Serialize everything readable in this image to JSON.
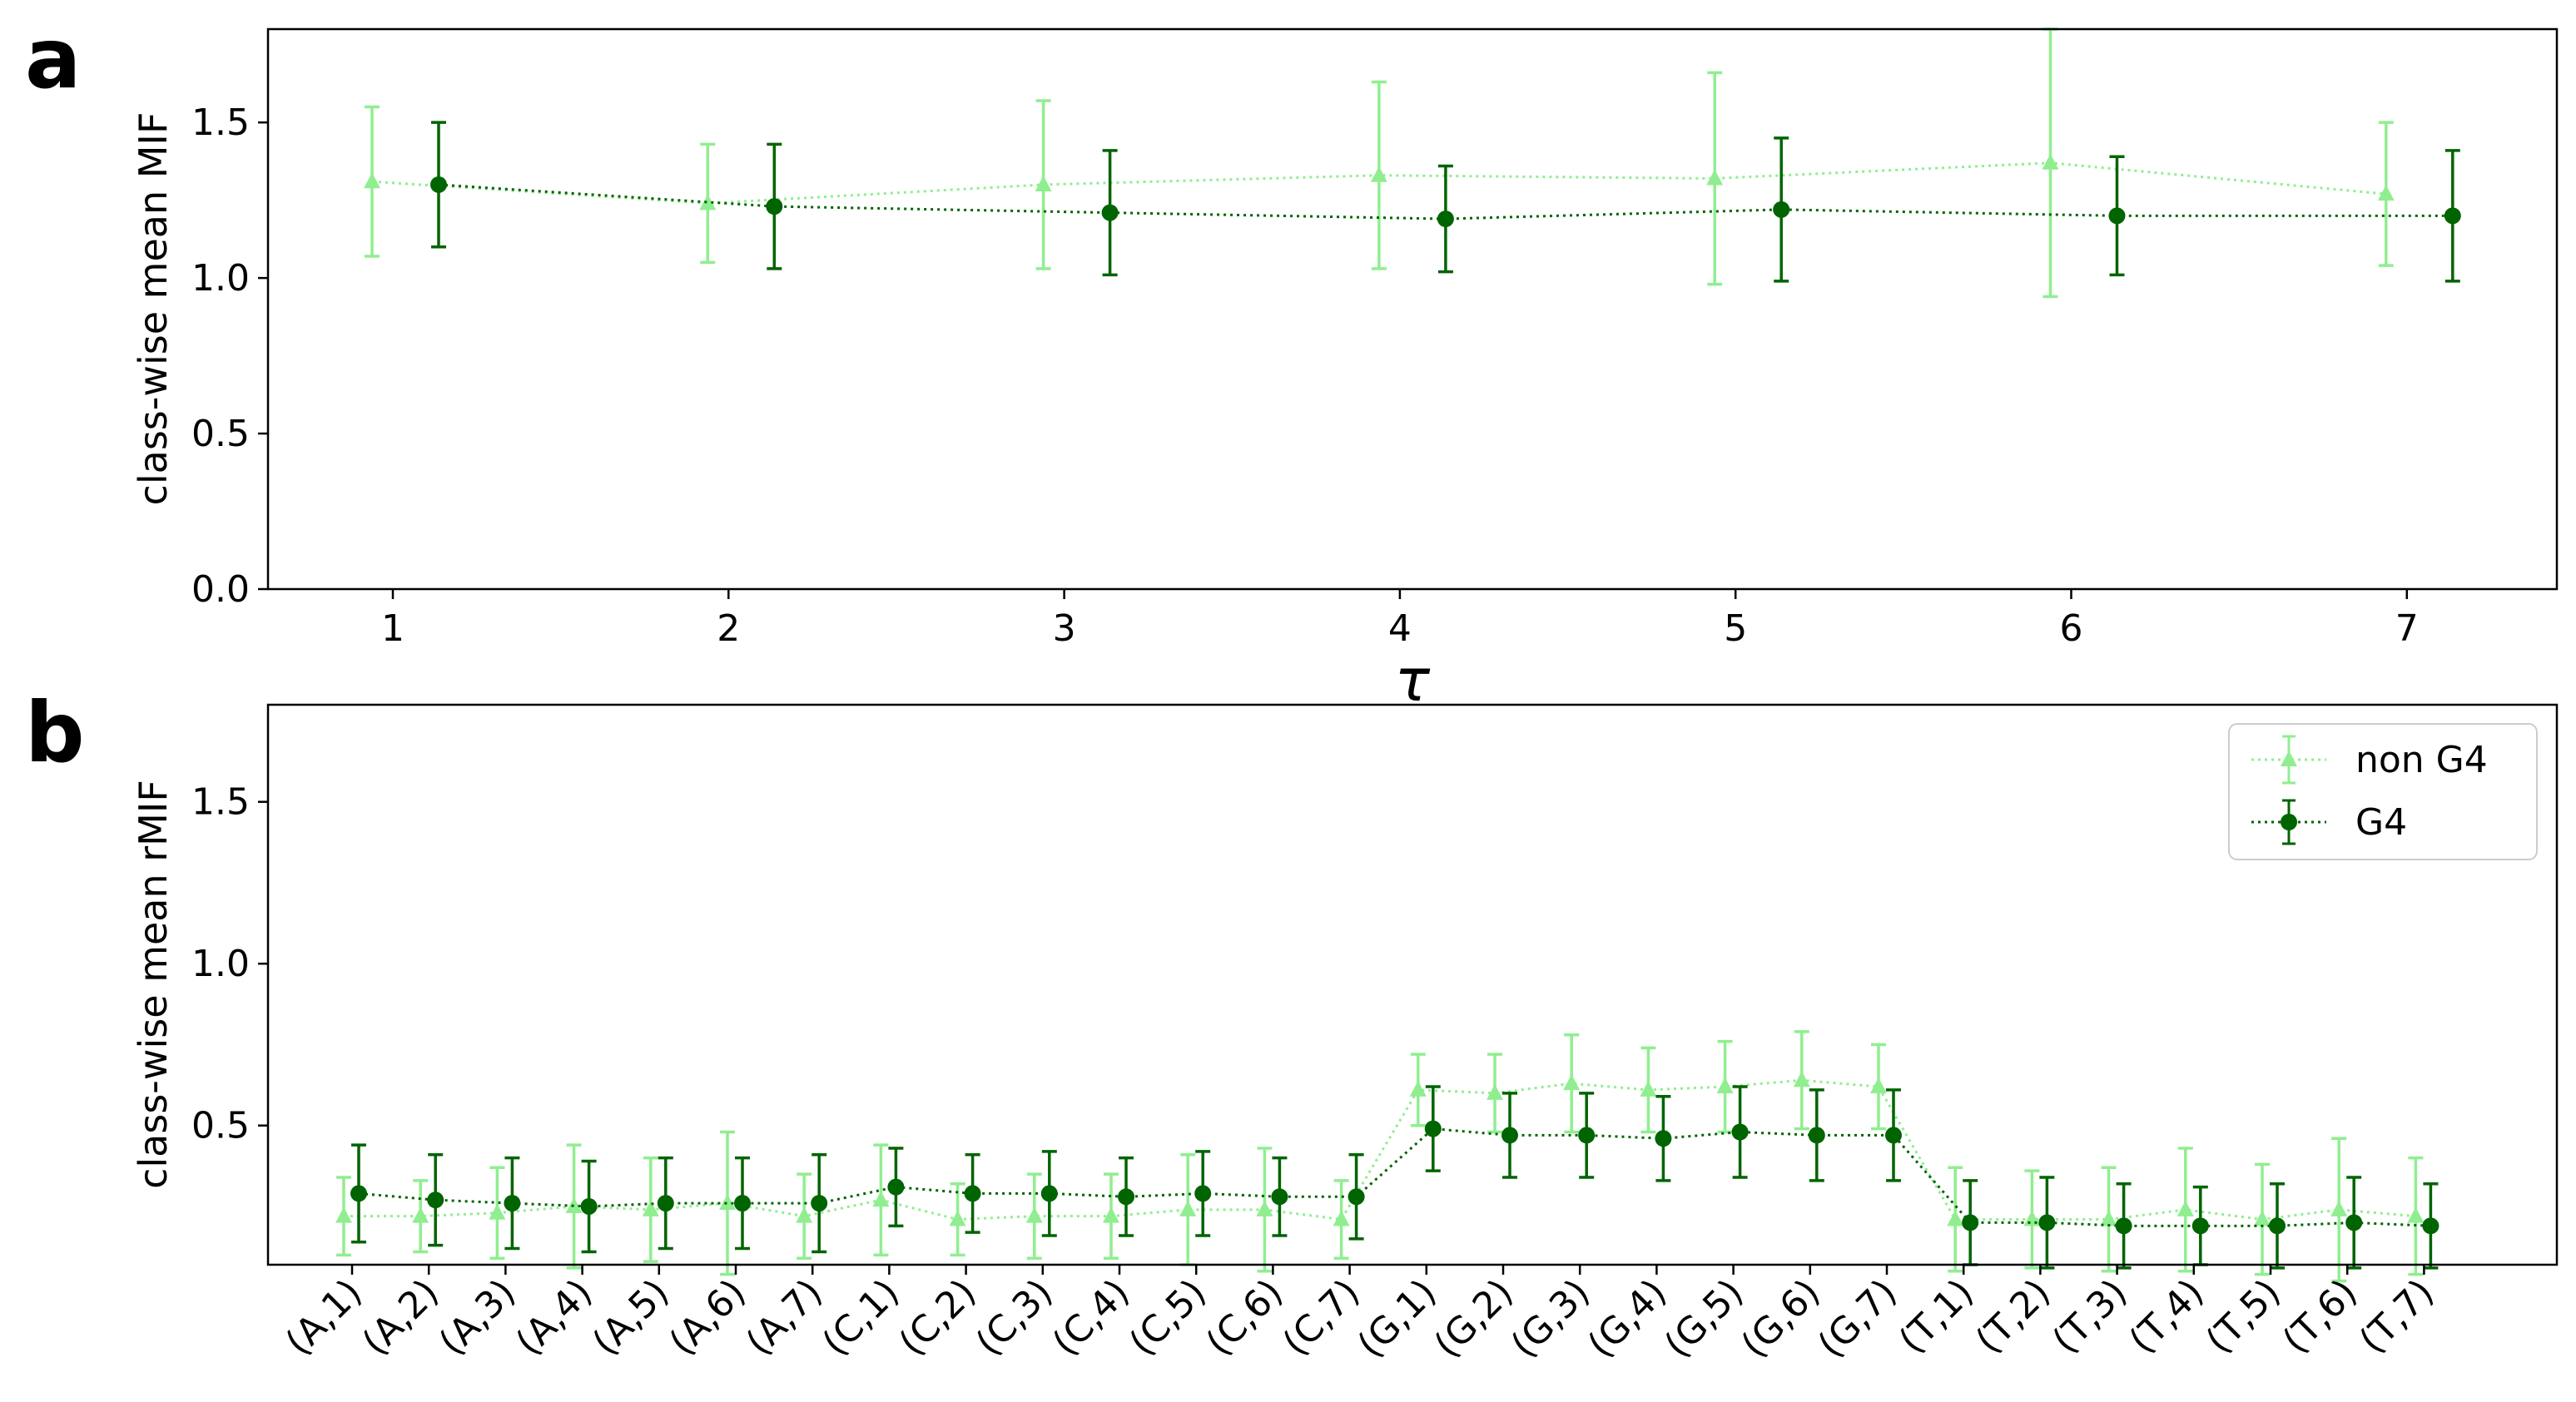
{
  "chart_data": [
    {
      "panel": "a",
      "type": "line",
      "title": "",
      "xlabel": "τ",
      "ylabel": "class-wise mean MIF",
      "ylim": [
        0,
        1.8
      ],
      "yticks": [
        "0.0",
        "0.5",
        "1.0",
        "1.5"
      ],
      "ytick_values": [
        0,
        0.5,
        1.0,
        1.5
      ],
      "categories": [
        "1",
        "2",
        "3",
        "4",
        "5",
        "6",
        "7"
      ],
      "grid": false,
      "legend": "none",
      "series": [
        {
          "name": "non G4",
          "color": "#90ee90",
          "marker": "triangle",
          "values": [
            1.31,
            1.24,
            1.3,
            1.33,
            1.32,
            1.37,
            1.27
          ],
          "errors": [
            0.24,
            0.19,
            0.27,
            0.3,
            0.34,
            0.43,
            0.23
          ]
        },
        {
          "name": "G4",
          "color": "#006400",
          "marker": "circle",
          "values": [
            1.3,
            1.23,
            1.21,
            1.19,
            1.22,
            1.2,
            1.2
          ],
          "errors": [
            0.2,
            0.2,
            0.2,
            0.17,
            0.23,
            0.19,
            0.21
          ]
        }
      ]
    },
    {
      "panel": "b",
      "type": "line",
      "title": "",
      "xlabel": "",
      "ylabel": "class-wise mean rMIF",
      "ylim": [
        0.07,
        1.8
      ],
      "yticks": [
        "0.5",
        "1.0",
        "1.5"
      ],
      "ytick_values": [
        0.5,
        1.0,
        1.5
      ],
      "categories": [
        "(A,1)",
        "(A,2)",
        "(A,3)",
        "(A,4)",
        "(A,5)",
        "(A,6)",
        "(A,7)",
        "(C,1)",
        "(C,2)",
        "(C,3)",
        "(C,4)",
        "(C,5)",
        "(C,6)",
        "(C,7)",
        "(G,1)",
        "(G,2)",
        "(G,3)",
        "(G,4)",
        "(G,5)",
        "(G,6)",
        "(G,7)",
        "(T,1)",
        "(T,2)",
        "(T,3)",
        "(T,4)",
        "(T,5)",
        "(T,6)",
        "(T,7)"
      ],
      "grid": false,
      "legend": "upper right",
      "series": [
        {
          "name": "non G4",
          "color": "#90ee90",
          "marker": "triangle",
          "values": [
            0.22,
            0.22,
            0.23,
            0.25,
            0.24,
            0.26,
            0.22,
            0.27,
            0.21,
            0.22,
            0.22,
            0.24,
            0.24,
            0.21,
            0.61,
            0.6,
            0.63,
            0.61,
            0.62,
            0.64,
            0.62,
            0.21,
            0.21,
            0.21,
            0.24,
            0.21,
            0.24,
            0.22
          ],
          "errors": [
            0.12,
            0.11,
            0.14,
            0.19,
            0.16,
            0.22,
            0.13,
            0.17,
            0.11,
            0.13,
            0.13,
            0.17,
            0.19,
            0.12,
            0.11,
            0.12,
            0.15,
            0.13,
            0.14,
            0.15,
            0.13,
            0.16,
            0.15,
            0.16,
            0.19,
            0.17,
            0.22,
            0.18
          ]
        },
        {
          "name": "G4",
          "color": "#006400",
          "marker": "circle",
          "values": [
            0.29,
            0.27,
            0.26,
            0.25,
            0.26,
            0.26,
            0.26,
            0.31,
            0.29,
            0.29,
            0.28,
            0.29,
            0.28,
            0.28,
            0.49,
            0.47,
            0.47,
            0.46,
            0.48,
            0.47,
            0.47,
            0.2,
            0.2,
            0.19,
            0.19,
            0.19,
            0.2,
            0.19
          ],
          "errors": [
            0.15,
            0.14,
            0.14,
            0.14,
            0.14,
            0.14,
            0.15,
            0.12,
            0.12,
            0.13,
            0.12,
            0.13,
            0.12,
            0.13,
            0.13,
            0.13,
            0.13,
            0.13,
            0.14,
            0.14,
            0.14,
            0.13,
            0.14,
            0.13,
            0.12,
            0.13,
            0.14,
            0.13
          ]
        }
      ]
    }
  ],
  "panels": {
    "a": {
      "letter": "a"
    },
    "b": {
      "letter": "b"
    }
  },
  "legend": {
    "items": [
      {
        "label": "non G4",
        "color": "#90ee90",
        "marker": "triangle"
      },
      {
        "label": "G4",
        "color": "#006400",
        "marker": "circle"
      }
    ]
  }
}
